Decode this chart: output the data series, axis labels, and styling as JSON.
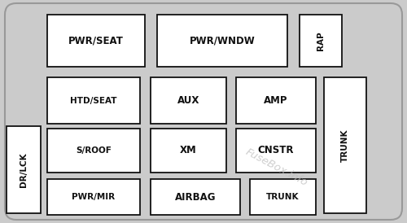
{
  "fig_bg": "#cbcbcb",
  "box_face": "#ffffff",
  "box_edge": "#111111",
  "text_color": "#111111",
  "watermark": "FuseBox.info",
  "boxes_data": [
    [
      "PWR/SEAT",
      58,
      18,
      178,
      82,
      0
    ],
    [
      "PWR/WNDW",
      193,
      18,
      353,
      82,
      0
    ],
    [
      "RAP",
      368,
      18,
      420,
      82,
      90
    ],
    [
      "HTD/SEAT",
      58,
      95,
      172,
      152,
      0
    ],
    [
      "AUX",
      185,
      95,
      278,
      152,
      0
    ],
    [
      "AMP",
      290,
      95,
      388,
      152,
      0
    ],
    [
      "DR/LCK",
      8,
      155,
      50,
      262,
      90
    ],
    [
      "S/ROOF",
      58,
      158,
      172,
      212,
      0
    ],
    [
      "XM",
      185,
      158,
      278,
      212,
      0
    ],
    [
      "CNSTR",
      290,
      158,
      388,
      212,
      0
    ],
    [
      "TRUNK",
      398,
      95,
      450,
      262,
      90
    ],
    [
      "PWR/MIR",
      58,
      220,
      172,
      264,
      0
    ],
    [
      "AIRBAG",
      185,
      220,
      295,
      264,
      0
    ],
    [
      "TRUNK",
      307,
      220,
      388,
      264,
      0
    ]
  ]
}
